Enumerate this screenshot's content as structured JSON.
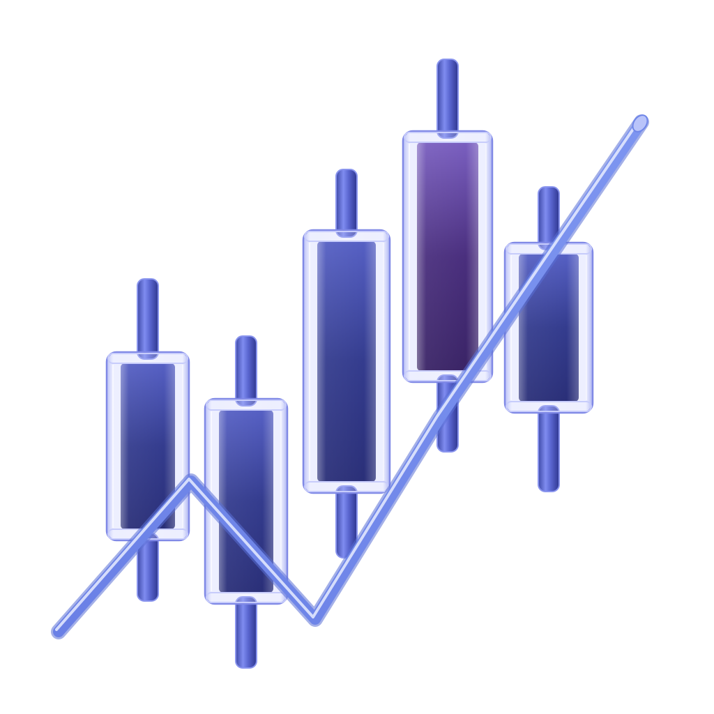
{
  "illustration": {
    "subject": "glass-candlestick-chart-with-trend-line",
    "candle_count": 5,
    "colors": {
      "background": "#ffffff",
      "glass_edge": "#7e86e6",
      "glass_highlight": "#e6e8ff",
      "body_blue_top": "#4a57b8",
      "body_blue_bottom": "#2a2f7a",
      "body_violet_top": "#6a4fae",
      "body_violet_bottom": "#3a2466",
      "wick_top": "#4a54c4",
      "wick_bottom": "#6c7ae0",
      "trend_line": "#6f86e8"
    },
    "body_tints": [
      "blue",
      "blue",
      "blue",
      "violet",
      "blue"
    ]
  }
}
